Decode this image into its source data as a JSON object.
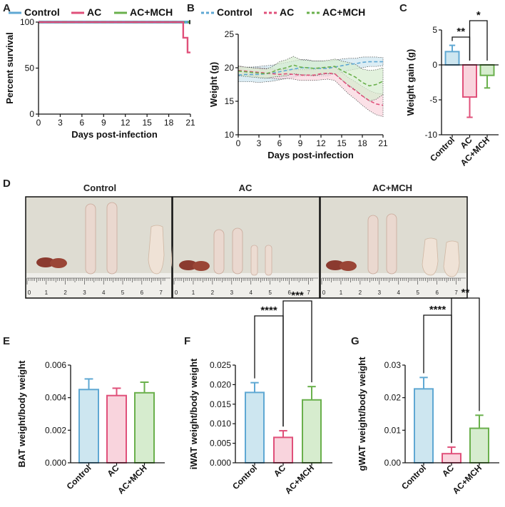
{
  "colors": {
    "control": "#5fa8d3",
    "ac": "#e0507a",
    "acmch": "#6ab04c",
    "control_fill": "#cde6f0",
    "ac_fill": "#f9d4dd",
    "acmch_fill": "#d6ecce"
  },
  "panels": {
    "A": "A",
    "B": "B",
    "C": "C",
    "D": "D",
    "E": "E",
    "F": "F",
    "G": "G"
  },
  "photos": {
    "titles": [
      "Control",
      "AC",
      "AC+MCH"
    ],
    "ruler_labels": [
      "0",
      "1",
      "2",
      "3",
      "4",
      "5",
      "6",
      "7"
    ]
  },
  "chart_data": [
    {
      "id": "A",
      "type": "line",
      "legend": [
        "Control",
        "AC",
        "AC+MCH"
      ],
      "xlabel": "Days post-infection",
      "ylabel": "Percent survival",
      "xlim": [
        0,
        21
      ],
      "ylim": [
        0,
        100
      ],
      "xticks": [
        0,
        3,
        6,
        9,
        12,
        15,
        18,
        21
      ],
      "yticks": [
        0,
        50,
        100
      ],
      "series": [
        {
          "name": "Control",
          "x": [
            0,
            21
          ],
          "y": [
            100,
            100
          ]
        },
        {
          "name": "AC",
          "x": [
            0,
            20,
            20,
            20.6,
            20.6,
            21
          ],
          "y": [
            100,
            100,
            83,
            83,
            67,
            67
          ]
        },
        {
          "name": "AC+MCH",
          "x": [
            0,
            21
          ],
          "y": [
            100,
            100
          ]
        }
      ]
    },
    {
      "id": "B",
      "type": "line",
      "legend": [
        "Control",
        "AC",
        "AC+MCH"
      ],
      "xlabel": "Days post-infection",
      "ylabel": "Weight (g)",
      "xlim": [
        0,
        21
      ],
      "ylim": [
        10,
        25
      ],
      "xticks": [
        0,
        3,
        6,
        9,
        12,
        15,
        18,
        21
      ],
      "yticks": [
        10,
        15,
        20,
        25
      ],
      "x": [
        0,
        1,
        2,
        3,
        4,
        5,
        6,
        7,
        8,
        9,
        10,
        11,
        12,
        13,
        14,
        15,
        16,
        17,
        18,
        19,
        20,
        21
      ],
      "series": [
        {
          "name": "Control",
          "mean": [
            18.9,
            19.0,
            19.0,
            19.0,
            19.1,
            19.2,
            19.4,
            19.6,
            19.8,
            20.0,
            20.0,
            19.9,
            19.9,
            19.9,
            20.1,
            20.3,
            20.5,
            20.6,
            20.8,
            20.9,
            20.9,
            20.9
          ],
          "sd": [
            1.0,
            1.1,
            1.1,
            1.2,
            1.2,
            1.2,
            1.2,
            1.2,
            1.2,
            1.2,
            1.2,
            1.1,
            1.1,
            1.1,
            1.0,
            1.0,
            0.9,
            0.8,
            0.8,
            0.7,
            0.7,
            0.6
          ]
        },
        {
          "name": "AC",
          "mean": [
            19.6,
            19.5,
            19.4,
            19.3,
            19.2,
            19.1,
            19.0,
            19.1,
            19.0,
            18.9,
            18.9,
            18.9,
            19.1,
            19.2,
            19.1,
            18.2,
            17.3,
            16.6,
            15.8,
            15.1,
            14.6,
            14.4
          ],
          "sd": [
            0.7,
            0.6,
            0.6,
            0.7,
            0.7,
            0.7,
            0.7,
            0.7,
            0.7,
            0.8,
            0.8,
            0.8,
            0.9,
            0.9,
            1.0,
            1.1,
            1.2,
            1.3,
            1.4,
            1.5,
            1.6,
            1.7
          ]
        },
        {
          "name": "AC+MCH",
          "mean": [
            19.5,
            19.4,
            19.3,
            19.2,
            19.1,
            19.4,
            19.8,
            20.0,
            20.4,
            20.1,
            20.0,
            19.9,
            20.0,
            20.1,
            20.2,
            19.6,
            19.1,
            18.6,
            17.8,
            17.3,
            17.5,
            18.0
          ],
          "sd": [
            0.7,
            0.7,
            0.7,
            0.7,
            0.7,
            0.8,
            1.1,
            1.2,
            1.3,
            1.1,
            1.1,
            1.1,
            1.0,
            1.0,
            1.1,
            1.4,
            1.7,
            1.9,
            2.0,
            2.3,
            2.2,
            2.0
          ]
        }
      ]
    },
    {
      "id": "C",
      "type": "bar",
      "categories": [
        "Control",
        "AC",
        "AC+MCH"
      ],
      "values": [
        1.9,
        -4.6,
        -1.5
      ],
      "errors": [
        0.9,
        2.9,
        1.8
      ],
      "ylabel": "Weight gain (g)",
      "ylim": [
        -10,
        5
      ],
      "yticks": [
        -10,
        -5,
        0,
        5
      ],
      "significance": [
        {
          "pair": [
            0,
            1
          ],
          "label": "**"
        },
        {
          "pair": [
            1,
            2
          ],
          "label": "*"
        }
      ]
    },
    {
      "id": "E",
      "type": "bar",
      "categories": [
        "Control",
        "AC",
        "AC+MCH"
      ],
      "values": [
        0.0045,
        0.00413,
        0.0043
      ],
      "errors": [
        0.00065,
        0.00045,
        0.00065
      ],
      "ylabel": "BAT weight/body weight",
      "ylim": [
        0,
        0.006
      ],
      "yticks": [
        "0.000",
        "0.002",
        "0.004",
        "0.006"
      ],
      "significance": []
    },
    {
      "id": "F",
      "type": "bar",
      "categories": [
        "Control",
        "AC",
        "AC+MCH"
      ],
      "values": [
        0.018,
        0.0065,
        0.0161
      ],
      "errors": [
        0.0025,
        0.0017,
        0.0034
      ],
      "ylabel": "iWAT weight/body weight",
      "ylim": [
        0,
        0.025
      ],
      "yticks": [
        "0.000",
        "0.005",
        "0.010",
        "0.015",
        "0.020",
        "0.025"
      ],
      "significance": [
        {
          "pair": [
            0,
            1
          ],
          "label": "****"
        },
        {
          "pair": [
            1,
            2
          ],
          "label": "***"
        }
      ]
    },
    {
      "id": "G",
      "type": "bar",
      "categories": [
        "Control",
        "AC",
        "AC+MCH"
      ],
      "values": [
        0.0227,
        0.0028,
        0.0106
      ],
      "errors": [
        0.0035,
        0.002,
        0.004
      ],
      "ylabel": "gWAT weight/body weight",
      "ylim": [
        0,
        0.03
      ],
      "yticks": [
        "0.00",
        "0.01",
        "0.02",
        "0.03"
      ],
      "significance": [
        {
          "pair": [
            0,
            1
          ],
          "label": "****"
        },
        {
          "pair": [
            1,
            2
          ],
          "label": "**"
        }
      ]
    }
  ]
}
